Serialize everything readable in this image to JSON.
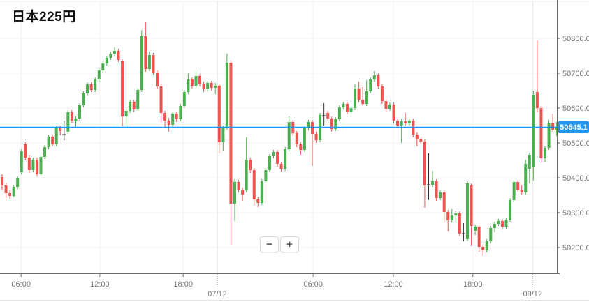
{
  "header": {
    "title": "日本225円"
  },
  "price_badge": {
    "value": "50545.1"
  },
  "controls": {
    "zoom_out": "−",
    "zoom_in": "+"
  },
  "colors": {
    "up": "#4caf50",
    "down": "#ef5350",
    "doji": "#333333",
    "price_line": "#2196f3",
    "badge_bg": "#2196f3",
    "grid": "#f0f0f0",
    "date_separator": "#e0e0e0",
    "axis_line": "#6b6b6b",
    "axis_label": "#757575",
    "top_border": "#ececec",
    "bottom_border": "#e2e6e8",
    "title_color": "#0e0e0e"
  },
  "chart_data": {
    "type": "candlestick",
    "title": "日本225円",
    "last_price": 50545.1,
    "last_price_label": "50545.1",
    "y_axis": {
      "tick_values": [
        50800,
        50700,
        50600,
        50500,
        50400,
        50300,
        50200
      ],
      "tick_labels": [
        "50800.0",
        "50700.0",
        "50600.0",
        "50500.0",
        "50400.0",
        "50300.0",
        "50200.0"
      ],
      "range": [
        50150,
        50880
      ]
    },
    "x_axis": {
      "time_ticks": [
        {
          "pos": 4.9,
          "label": "06:00"
        },
        {
          "pos": 25.2,
          "label": "12:00"
        },
        {
          "pos": 46.7,
          "label": "18:00"
        },
        {
          "pos": 80.2,
          "label": "06:00"
        },
        {
          "pos": 100.9,
          "label": "12:00"
        },
        {
          "pos": 121.4,
          "label": "18:00"
        }
      ],
      "date_ticks": [
        {
          "pos": 55.5,
          "label": "07/12"
        },
        {
          "pos": 136.8,
          "label": "09/12"
        }
      ]
    },
    "candles": [
      [
        50402,
        50410,
        50366,
        50378
      ],
      [
        50378,
        50386,
        50342,
        50356
      ],
      [
        50356,
        50366,
        50338,
        50348
      ],
      [
        50348,
        50380,
        50344,
        50374
      ],
      [
        50374,
        50404,
        50368,
        50398
      ],
      [
        50416,
        50482,
        50410,
        50476
      ],
      [
        50496,
        50502,
        50450,
        50458
      ],
      [
        50458,
        50464,
        50414,
        50422
      ],
      [
        50422,
        50458,
        50416,
        50452
      ],
      [
        50452,
        50458,
        50404,
        50410
      ],
      [
        50410,
        50466,
        50404,
        50460
      ],
      [
        50460,
        50494,
        50454,
        50488
      ],
      [
        50488,
        50524,
        50482,
        50518
      ],
      [
        50518,
        50524,
        50490,
        50496
      ],
      [
        50496,
        50548,
        50490,
        50544
      ],
      [
        50544,
        50550,
        50522,
        50534
      ],
      [
        50524,
        50564,
        50508,
        50524
      ],
      [
        50532,
        50594,
        50526,
        50588
      ],
      [
        50588,
        50594,
        50558,
        50564
      ],
      [
        50564,
        50576,
        50544,
        50570
      ],
      [
        50570,
        50614,
        50564,
        50608
      ],
      [
        50608,
        50648,
        50602,
        50642
      ],
      [
        50642,
        50674,
        50636,
        50668
      ],
      [
        50668,
        50674,
        50646,
        50652
      ],
      [
        50652,
        50688,
        50646,
        50682
      ],
      [
        50682,
        50714,
        50676,
        50708
      ],
      [
        50708,
        50734,
        50702,
        50728
      ],
      [
        50728,
        50750,
        50722,
        50744
      ],
      [
        50744,
        50762,
        50738,
        50756
      ],
      [
        50756,
        50774,
        50748,
        50764
      ],
      [
        50764,
        50770,
        50732,
        50738
      ],
      [
        50734,
        50740,
        50548,
        50576
      ],
      [
        50576,
        50598,
        50545,
        50592
      ],
      [
        50592,
        50624,
        50586,
        50618
      ],
      [
        50618,
        50624,
        50588,
        50596
      ],
      [
        50596,
        50658,
        50592,
        50652
      ],
      [
        50652,
        50824,
        50646,
        50806
      ],
      [
        50806,
        50846,
        50704,
        50712
      ],
      [
        50712,
        50762,
        50706,
        50752
      ],
      [
        50752,
        50758,
        50696,
        50702
      ],
      [
        50702,
        50708,
        50656,
        50662
      ],
      [
        50662,
        50668,
        50560,
        50586
      ],
      [
        50586,
        50592,
        50546,
        50564
      ],
      [
        50564,
        50572,
        50532,
        50552
      ],
      [
        50552,
        50590,
        50546,
        50584
      ],
      [
        50584,
        50590,
        50560,
        50568
      ],
      [
        50568,
        50612,
        50562,
        50606
      ],
      [
        50606,
        50652,
        50600,
        50646
      ],
      [
        50646,
        50700,
        50640,
        50682
      ],
      [
        50682,
        50688,
        50656,
        50664
      ],
      [
        50664,
        50706,
        50658,
        50692
      ],
      [
        50692,
        50698,
        50662,
        50670
      ],
      [
        50670,
        50676,
        50646,
        50654
      ],
      [
        50654,
        50678,
        50648,
        50672
      ],
      [
        50672,
        50678,
        50650,
        50658
      ],
      [
        50658,
        50672,
        50640,
        50664
      ],
      [
        50664,
        50670,
        50470,
        50502
      ],
      [
        50502,
        50550,
        50478,
        50544
      ],
      [
        50544,
        50756,
        50538,
        50730
      ],
      [
        50730,
        50736,
        50206,
        50326
      ],
      [
        50326,
        50396,
        50276,
        50388
      ],
      [
        50388,
        50394,
        50358,
        50366
      ],
      [
        50366,
        50372,
        50334,
        50352
      ],
      [
        50364,
        50516,
        50358,
        50452
      ],
      [
        50452,
        50458,
        50414,
        50422
      ],
      [
        50422,
        50428,
        50320,
        50338
      ],
      [
        50338,
        50344,
        50316,
        50328
      ],
      [
        50328,
        50396,
        50322,
        50390
      ],
      [
        50390,
        50428,
        50384,
        50422
      ],
      [
        50422,
        50468,
        50416,
        50462
      ],
      [
        50462,
        50480,
        50456,
        50474
      ],
      [
        50474,
        50480,
        50432,
        50440
      ],
      [
        50440,
        50446,
        50418,
        50426
      ],
      [
        50426,
        50488,
        50420,
        50482
      ],
      [
        50482,
        50576,
        50476,
        50560
      ],
      [
        50560,
        50566,
        50520,
        50528
      ],
      [
        50528,
        50534,
        50488,
        50496
      ],
      [
        50496,
        50502,
        50466,
        50480
      ],
      [
        50480,
        50548,
        50474,
        50542
      ],
      [
        50542,
        50566,
        50536,
        50560
      ],
      [
        50560,
        50566,
        50434,
        50526
      ],
      [
        50526,
        50532,
        50500,
        50508
      ],
      [
        50508,
        50586,
        50502,
        50580
      ],
      [
        50578,
        50614,
        50550,
        50578
      ],
      [
        50586,
        50592,
        50564,
        50570
      ],
      [
        50570,
        50576,
        50532,
        50540
      ],
      [
        50540,
        50574,
        50534,
        50568
      ],
      [
        50568,
        50608,
        50562,
        50602
      ],
      [
        50602,
        50618,
        50596,
        50612
      ],
      [
        50612,
        50618,
        50582,
        50590
      ],
      [
        50590,
        50606,
        50584,
        50600
      ],
      [
        50600,
        50668,
        50594,
        50656
      ],
      [
        50656,
        50676,
        50616,
        50624
      ],
      [
        50624,
        50660,
        50606,
        50612
      ],
      [
        50612,
        50680,
        50606,
        50648
      ],
      [
        50648,
        50688,
        50642,
        50682
      ],
      [
        50682,
        50706,
        50676,
        50694
      ],
      [
        50694,
        50700,
        50654,
        50662
      ],
      [
        50662,
        50668,
        50612,
        50620
      ],
      [
        50620,
        50626,
        50590,
        50598
      ],
      [
        50598,
        50616,
        50592,
        50610
      ],
      [
        50610,
        50616,
        50556,
        50564
      ],
      [
        50564,
        50570,
        50542,
        50550
      ],
      [
        50550,
        50568,
        50500,
        50562
      ],
      [
        50562,
        50586,
        50550,
        50556
      ],
      [
        50556,
        50570,
        50550,
        50564
      ],
      [
        50564,
        50570,
        50516,
        50524
      ],
      [
        50524,
        50530,
        50490,
        50510
      ],
      [
        50510,
        50516,
        50496,
        50504
      ],
      [
        50504,
        50510,
        50314,
        50378
      ],
      [
        50380,
        50470,
        50336,
        50380
      ],
      [
        50380,
        50420,
        50374,
        50390
      ],
      [
        50390,
        50396,
        50334,
        50342
      ],
      [
        50342,
        50364,
        50336,
        50358
      ],
      [
        50358,
        50364,
        50270,
        50302
      ],
      [
        50302,
        50308,
        50246,
        50278
      ],
      [
        50278,
        50310,
        50272,
        50292
      ],
      [
        50292,
        50304,
        50270,
        50298
      ],
      [
        50298,
        50304,
        50232,
        50240
      ],
      [
        50240,
        50270,
        50218,
        50240
      ],
      [
        50224,
        50390,
        50218,
        50384
      ],
      [
        50378,
        50384,
        50204,
        50262
      ],
      [
        50248,
        50266,
        50236,
        50260
      ],
      [
        50260,
        50266,
        50188,
        50202
      ],
      [
        50202,
        50208,
        50176,
        50192
      ],
      [
        50192,
        50224,
        50186,
        50218
      ],
      [
        50218,
        50262,
        50212,
        50256
      ],
      [
        50256,
        50274,
        50244,
        50268
      ],
      [
        50268,
        50282,
        50262,
        50276
      ],
      [
        50276,
        50282,
        50252,
        50260
      ],
      [
        50260,
        50286,
        50254,
        50280
      ],
      [
        50280,
        50342,
        50274,
        50336
      ],
      [
        50336,
        50394,
        50330,
        50388
      ],
      [
        50388,
        50394,
        50360,
        50366
      ],
      [
        50366,
        50378,
        50352,
        50358
      ],
      [
        50358,
        50452,
        50352,
        50440
      ],
      [
        50426,
        50472,
        50384,
        50466
      ],
      [
        50430,
        50650,
        50392,
        50638
      ],
      [
        50646,
        50794,
        50588,
        50600
      ],
      [
        50600,
        50606,
        50444,
        50456
      ],
      [
        50456,
        50492,
        50446,
        50486
      ],
      [
        50486,
        50566,
        50480,
        50558
      ],
      [
        50558,
        50584,
        50532,
        50538
      ],
      [
        50538,
        50560,
        50520,
        50545.1
      ]
    ]
  }
}
